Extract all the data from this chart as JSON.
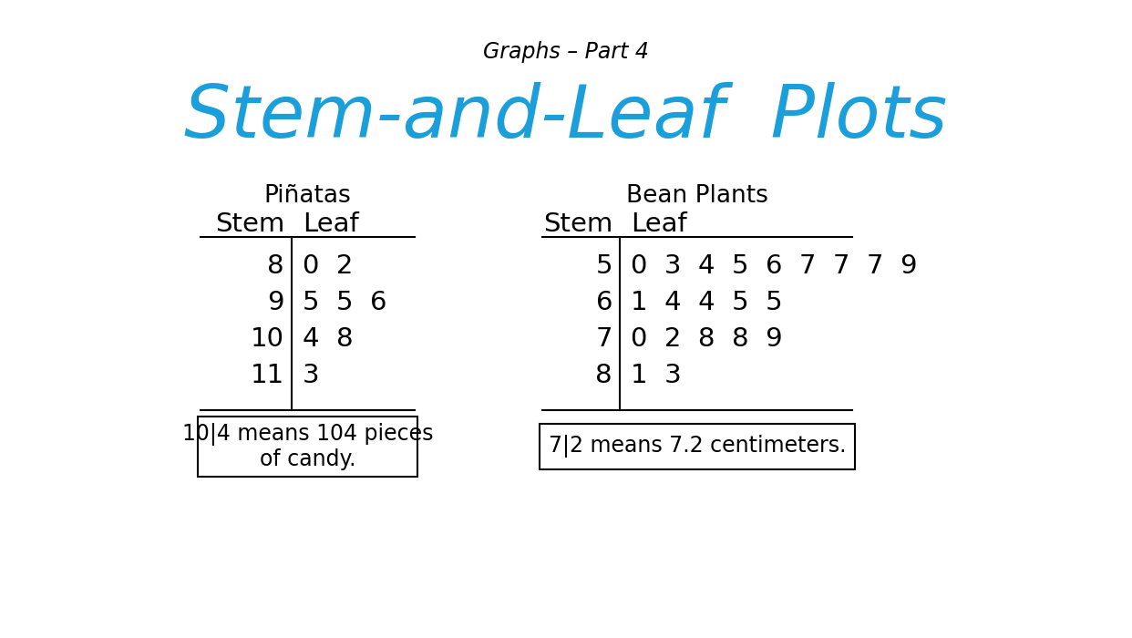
{
  "subtitle": "Graphs – Part 4",
  "title": "Stem-and-Leaf  Plots",
  "title_color": "#1a9fdb",
  "subtitle_color": "#000000",
  "bg_color": "#ffffff",
  "table1_title": "Piñatas",
  "table1_stems": [
    "8",
    "9",
    "10",
    "11"
  ],
  "table1_leaves": [
    "0  2",
    "5  5  6",
    "4  8",
    "3"
  ],
  "table1_note": "10|4 means 104 pieces\nof candy.",
  "table2_title": "Bean Plants",
  "table2_stems": [
    "5",
    "6",
    "7",
    "8"
  ],
  "table2_leaves": [
    "0  3  4  5  6  7  7  7  9",
    "1  4  4  5  5",
    "0  2  8  8  9",
    "1  3"
  ],
  "table2_note": "7|2 means 7.2 centimeters.",
  "header_stem": "Stem",
  "header_leaf": "Leaf",
  "font_size_subtitle": 17,
  "font_size_title": 58,
  "font_size_table_title": 19,
  "font_size_header": 21,
  "font_size_data": 21,
  "font_size_note": 17
}
